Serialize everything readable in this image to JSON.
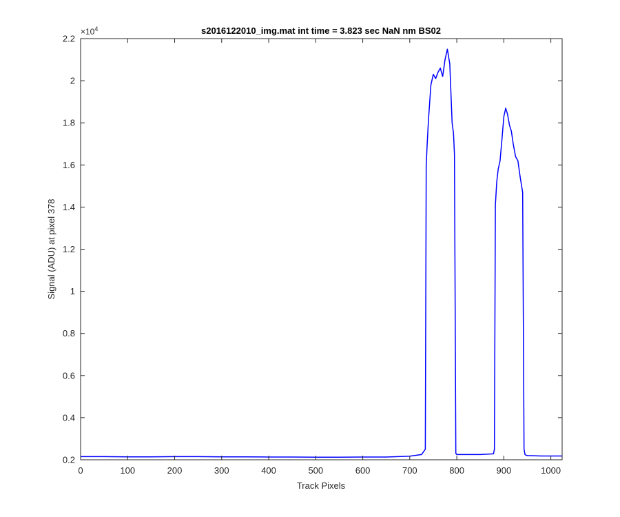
{
  "chart_data": {
    "type": "line",
    "title": "s2016122010_img.mat int time = 3.823 sec  NaN nm BS02",
    "xlabel": "Track Pixels",
    "ylabel": "Signal (ADU) at pixel 378",
    "xlim": [
      0,
      1024
    ],
    "ylim": [
      2000,
      22000
    ],
    "x_ticks": [
      0,
      100,
      200,
      300,
      400,
      500,
      600,
      700,
      800,
      900,
      1000
    ],
    "y_ticks": [
      0.2,
      0.4,
      0.6,
      0.8,
      1,
      1.2,
      1.4,
      1.6,
      1.8,
      2,
      2.2
    ],
    "y_exponent_label": "×10",
    "y_exponent_power": "4",
    "grid": false,
    "line_color": "#0000ff",
    "series": [
      {
        "x": [
          0,
          50,
          100,
          150,
          200,
          250,
          300,
          350,
          400,
          450,
          500,
          550,
          600,
          650,
          700,
          725,
          733,
          735,
          737,
          740,
          745,
          750,
          755,
          760,
          765,
          770,
          775,
          780,
          785,
          790,
          793,
          795,
          798,
          800,
          820,
          850,
          878,
          880,
          882,
          885,
          888,
          892,
          896,
          900,
          904,
          908,
          912,
          916,
          920,
          925,
          930,
          935,
          940,
          943,
          945,
          947,
          950,
          980,
          1000,
          1024
        ],
        "y": [
          2150,
          2150,
          2140,
          2140,
          2150,
          2150,
          2140,
          2140,
          2130,
          2130,
          2120,
          2120,
          2130,
          2130,
          2170,
          2250,
          2500,
          16000,
          17000,
          18200,
          19800,
          20300,
          20100,
          20400,
          20600,
          20200,
          21000,
          21500,
          20800,
          18000,
          17500,
          16500,
          2300,
          2250,
          2250,
          2250,
          2280,
          2500,
          14100,
          15200,
          15800,
          16200,
          17200,
          18300,
          18700,
          18400,
          17900,
          17600,
          17000,
          16400,
          16200,
          15400,
          14700,
          2500,
          2250,
          2220,
          2200,
          2180,
          2180,
          2180
        ]
      }
    ]
  }
}
